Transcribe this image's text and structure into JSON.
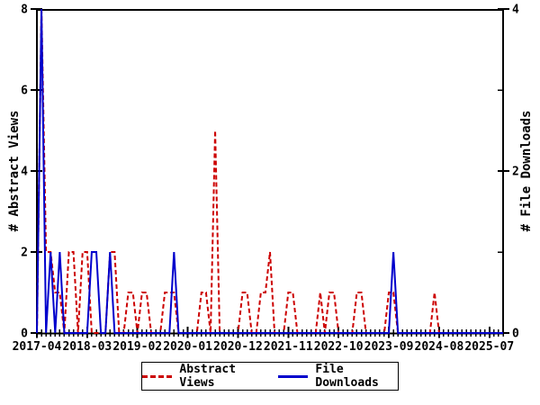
{
  "chart_data": {
    "type": "line",
    "title": "",
    "x_axis": {
      "start_month": "2017-04",
      "tick_interval_months": 11,
      "tick_labels": [
        "2017-04",
        "2018-03",
        "2019-02",
        "2020-01",
        "2020-12",
        "2021-11",
        "2022-10",
        "2023-09",
        "2024-08",
        "2025-07"
      ]
    },
    "y_axis_left": {
      "label": "# Abstract Views",
      "ticks": [
        0,
        2,
        4,
        6,
        8
      ],
      "range": [
        0,
        8
      ]
    },
    "y_axis_right": {
      "label": "# File Downloads",
      "ticks": [
        0,
        2,
        4
      ],
      "range": [
        0,
        4
      ]
    },
    "grid": false,
    "legend": {
      "position": "bottom-center",
      "entries": [
        {
          "label": "Abstract Views",
          "color": "#cc0000",
          "style": "dashed"
        },
        {
          "label": "File Downloads",
          "color": "#0000cc",
          "style": "solid"
        }
      ]
    },
    "series": [
      {
        "name": "Abstract Views",
        "axis": "left",
        "color": "#cc0000",
        "dashed": true,
        "values": [
          0,
          8,
          2,
          2,
          1,
          1,
          0,
          2,
          2,
          0,
          2,
          2,
          0,
          0,
          0,
          0,
          2,
          2,
          0,
          0,
          1,
          1,
          0,
          1,
          1,
          0,
          0,
          0,
          1,
          1,
          1,
          0,
          0,
          0,
          0,
          0,
          1,
          1,
          0,
          5,
          0,
          0,
          0,
          0,
          0,
          1,
          1,
          0,
          0,
          1,
          1,
          2,
          0,
          0,
          0,
          1,
          1,
          0,
          0,
          0,
          0,
          0,
          1,
          0,
          1,
          1,
          0,
          0,
          0,
          0,
          1,
          1,
          0,
          0,
          0,
          0,
          0,
          1,
          1,
          0,
          0,
          0,
          0,
          0,
          0,
          0,
          0,
          1,
          0,
          0,
          0,
          0,
          0,
          0,
          0,
          0,
          0,
          0,
          0,
          0,
          0,
          0,
          0
        ]
      },
      {
        "name": "File Downloads",
        "axis": "right",
        "color": "#0000cc",
        "dashed": false,
        "values": [
          0,
          4,
          0,
          1,
          0,
          1,
          0,
          0,
          0,
          0,
          0,
          0,
          1,
          1,
          0,
          0,
          1,
          0,
          0,
          0,
          0,
          0,
          0,
          0,
          0,
          0,
          0,
          0,
          0,
          0,
          1,
          0,
          0,
          0,
          0,
          0,
          0,
          0,
          0,
          0,
          0,
          0,
          0,
          0,
          0,
          0,
          0,
          0,
          0,
          0,
          0,
          0,
          0,
          0,
          0,
          0,
          0,
          0,
          0,
          0,
          0,
          0,
          0,
          0,
          0,
          0,
          0,
          0,
          0,
          0,
          0,
          0,
          0,
          0,
          0,
          0,
          0,
          0,
          1,
          0,
          0,
          0,
          0,
          0,
          0,
          0,
          0,
          0,
          0,
          0,
          0,
          0,
          0,
          0,
          0,
          0,
          0,
          0,
          0,
          0,
          0,
          0,
          0
        ]
      }
    ]
  }
}
